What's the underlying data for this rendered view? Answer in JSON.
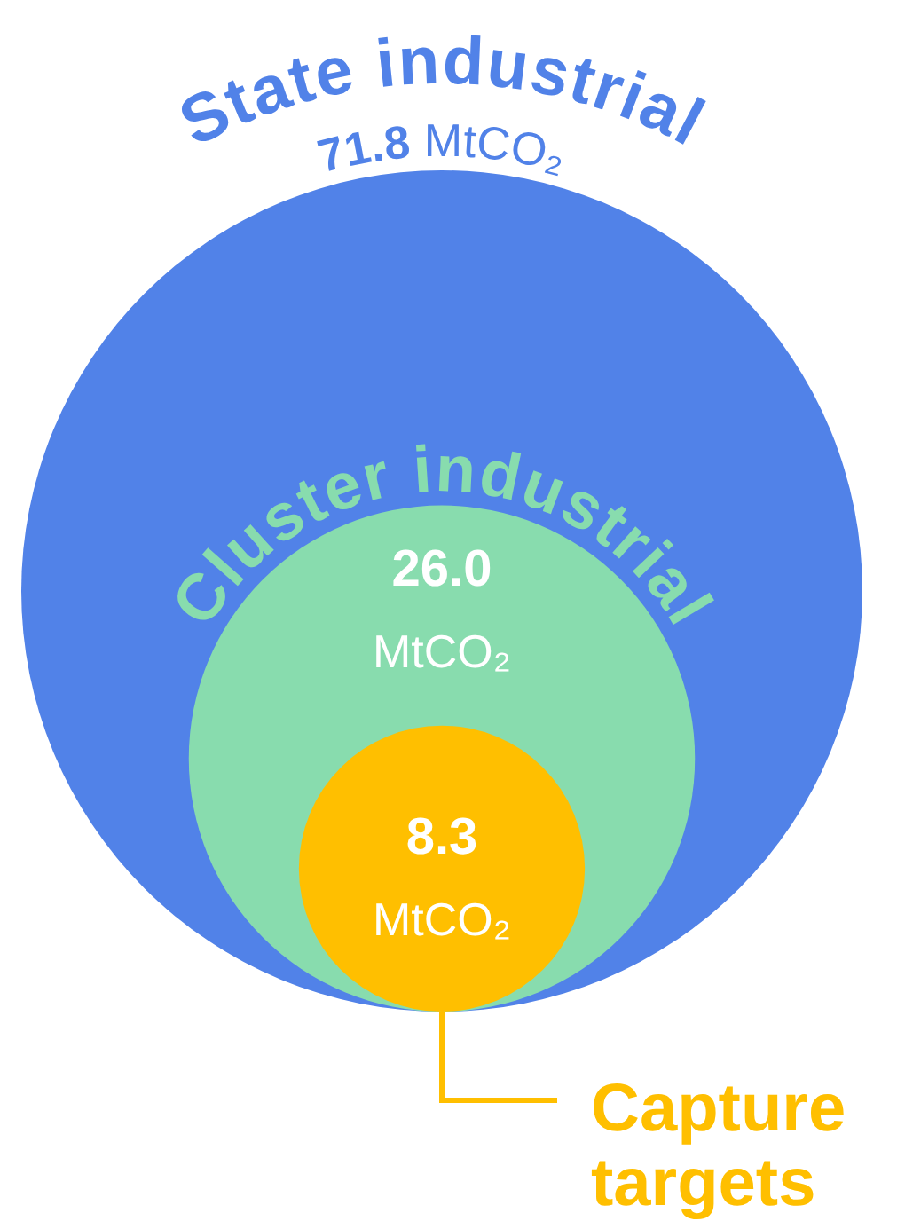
{
  "chart_data": {
    "type": "other",
    "categories": [
      "State industrial",
      "Cluster industrial",
      "Capture targets"
    ],
    "values": [
      71.8,
      26.0,
      8.3
    ],
    "colors": [
      "#5182e8",
      "#88dcae",
      "#ffbf00"
    ],
    "value_labels": [
      "71.8 MtCO₂",
      "26.0 MtCO₂",
      "8.3 MtCO₂"
    ]
  }
}
